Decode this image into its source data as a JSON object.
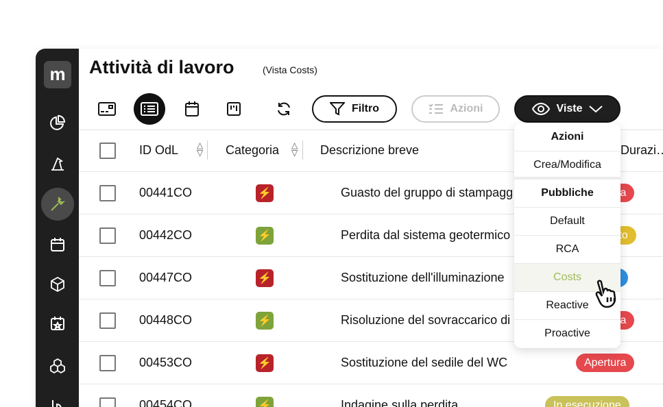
{
  "header": {
    "title": "Attività di lavoro",
    "subtitle": "(Vista Costs)"
  },
  "toolbar": {
    "filter_label": "Filtro",
    "actions_label": "Azioni",
    "views_label": "Viste"
  },
  "sidebar": {
    "logo": "m",
    "items": [
      "dashboard-icon",
      "wizard-icon",
      "wrench-icon",
      "calendar-icon",
      "cube-icon",
      "calendar-star-icon",
      "boxes-icon",
      "chart-icon"
    ],
    "active": "wrench-icon"
  },
  "table": {
    "columns": [
      "ID OdL",
      "Categoria",
      "Descrizione breve",
      "Durazi…"
    ],
    "rows": [
      {
        "id": "00441CO",
        "cat_color": "#b8232a",
        "desc": "Guasto del gruppo di stampaggio",
        "status": "Apertura",
        "status_color": "#e5484d"
      },
      {
        "id": "00442CO",
        "cat_color": "#7ea33a",
        "desc": "Perdita dal sistema geotermico",
        "status": "Completato",
        "status_color": "#e2bd2e"
      },
      {
        "id": "00447CO",
        "cat_color": "#b8232a",
        "desc": "Sostituzione dell'illuminazione",
        "status": "In attesa",
        "status_color": "#2f8fe0"
      },
      {
        "id": "00448CO",
        "cat_color": "#7ea33a",
        "desc": "Risoluzione del sovraccarico di",
        "status": "Apertura",
        "status_color": "#e5484d"
      },
      {
        "id": "00453CO",
        "cat_color": "#b8232a",
        "desc": "Sostituzione del sedile del WC",
        "status": "Apertura",
        "status_color": "#e5484d"
      },
      {
        "id": "00454CO",
        "cat_color": "#7ea33a",
        "desc": "Indagine sulla perdita",
        "status": "In esecuzione",
        "status_color": "#c9c15a"
      }
    ]
  },
  "views_menu": {
    "section1": "Azioni",
    "create": "Crea/Modifica",
    "section2": "Pubbliche",
    "items": [
      "Default",
      "RCA",
      "Costs",
      "Reactive",
      "Proactive"
    ],
    "selected": "Costs"
  }
}
